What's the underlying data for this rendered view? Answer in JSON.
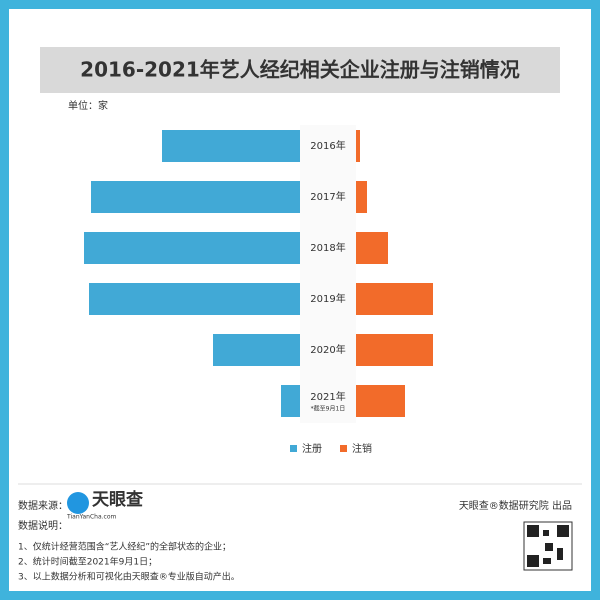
{
  "chart_data": {
    "type": "butterfly",
    "title": "2016-2021年艺人经纪相关企业注册与注销情况",
    "unit": "单位：家",
    "categories": [
      "2016年",
      "2017年",
      "2018年",
      "2019年",
      "2020年",
      "2021年"
    ],
    "annotation": "*截至9月1日",
    "series": [
      {
        "name": "注册",
        "color": "#41a9d6",
        "values": [
          138,
          209,
          216,
          211,
          87,
          19
        ]
      },
      {
        "name": "注销",
        "color": "#f26b2a",
        "values": [
          4,
          11,
          32,
          77,
          77,
          49
        ]
      }
    ]
  },
  "source_label": "数据来源：",
  "logo": "天眼查",
  "logo_url": "TianYanCha.com",
  "notes_title": "数据说明：",
  "notes": [
    "1、仅统计经营范围含“艺人经纪”的全部状态的企业；",
    "2、统计时间截至2021年9月1日；",
    "3、以上数据分析和可视化由天眼查®专业版自动产出。"
  ],
  "credit": "天眼查®数据研究院 出品"
}
